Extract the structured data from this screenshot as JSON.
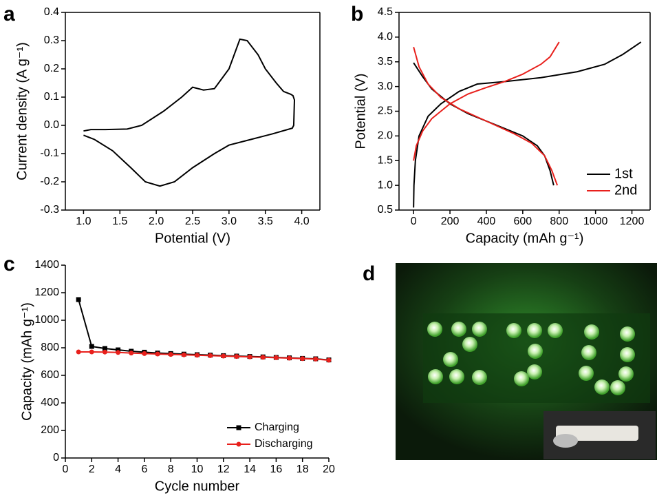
{
  "chart_data": [
    {
      "type": "line",
      "panel": "a",
      "xlabel": "Potential (V)",
      "ylabel": "Current density (A g⁻¹)",
      "frame": true,
      "xlim": [
        0.75,
        4.25
      ],
      "ylim": [
        -0.3,
        0.4
      ],
      "xticks": [
        {
          "value": 1,
          "label": "1.0"
        },
        1.5,
        {
          "value": 2,
          "label": "2.0"
        },
        2.5,
        {
          "value": 3,
          "label": "3.0"
        },
        3.5,
        {
          "value": 4,
          "label": "4.0"
        }
      ],
      "yticks": [
        -0.3,
        -0.2,
        -0.1,
        {
          "value": 0,
          "label": "0.0"
        },
        0.1,
        0.2,
        0.3,
        0.4
      ],
      "series": [
        {
          "color": "#000000",
          "x": [
            1.0,
            1.1,
            1.3,
            1.6,
            1.8,
            2.1,
            2.35,
            2.5,
            2.65,
            2.8,
            3.0,
            3.15,
            3.25,
            3.4,
            3.5,
            3.65,
            3.75,
            3.85,
            3.88,
            3.9,
            3.89,
            3.87,
            3.6,
            3.3,
            3.0,
            2.8,
            2.5,
            2.25,
            2.05,
            1.85,
            1.65,
            1.4,
            1.15,
            1.0
          ],
          "values": [
            -0.02,
            -0.015,
            -0.015,
            -0.013,
            0.0,
            0.05,
            0.1,
            0.135,
            0.125,
            0.13,
            0.2,
            0.305,
            0.3,
            0.25,
            0.2,
            0.15,
            0.12,
            0.11,
            0.105,
            0.09,
            0.0,
            -0.01,
            -0.03,
            -0.05,
            -0.07,
            -0.1,
            -0.15,
            -0.2,
            -0.215,
            -0.2,
            -0.15,
            -0.09,
            -0.05,
            -0.035
          ]
        }
      ]
    },
    {
      "type": "line",
      "panel": "b",
      "xlabel": "Capacity (mAh g⁻¹)",
      "ylabel": "Potential (V)",
      "frame": true,
      "legend": "lower right",
      "xlim": [
        -80,
        1300
      ],
      "ylim": [
        0.5,
        4.5
      ],
      "xticks": [
        0,
        200,
        400,
        600,
        800,
        1000,
        1200
      ],
      "yticks": [
        0.5,
        {
          "value": 1,
          "label": "1.0"
        },
        1.5,
        {
          "value": 2,
          "label": "2.0"
        },
        2.5,
        {
          "value": 3,
          "label": "3.0"
        },
        3.5,
        {
          "value": 4,
          "label": "4.0"
        },
        4.5
      ],
      "series": [
        {
          "name": "1st",
          "color": "#000000",
          "x": [
            0,
            2,
            10,
            30,
            80,
            150,
            250,
            350,
            500,
            700,
            900,
            1050,
            1150,
            1250,
            null,
            0,
            50,
            100,
            200,
            300,
            400,
            500,
            600,
            680,
            720,
            750,
            770
          ],
          "values": [
            0.55,
            1.0,
            1.5,
            2.0,
            2.4,
            2.65,
            2.9,
            3.05,
            3.1,
            3.18,
            3.3,
            3.45,
            3.65,
            3.9,
            null,
            3.48,
            3.2,
            2.95,
            2.65,
            2.45,
            2.3,
            2.15,
            2.0,
            1.8,
            1.6,
            1.3,
            1.0
          ]
        },
        {
          "name": "2nd",
          "color": "#e8201c",
          "x": [
            0,
            15,
            50,
            100,
            200,
            300,
            400,
            500,
            600,
            700,
            750,
            800,
            null,
            0,
            30,
            80,
            150,
            250,
            400,
            550,
            650,
            720,
            760,
            790
          ],
          "values": [
            1.5,
            1.8,
            2.1,
            2.35,
            2.65,
            2.85,
            2.98,
            3.1,
            3.25,
            3.45,
            3.6,
            3.9,
            null,
            3.8,
            3.4,
            3.05,
            2.78,
            2.55,
            2.3,
            2.05,
            1.85,
            1.6,
            1.3,
            1.0
          ]
        }
      ]
    },
    {
      "type": "line",
      "panel": "c",
      "xlabel": "Cycle number",
      "ylabel": "Capacity (mAh g⁻¹)",
      "frame": false,
      "legend": "lower right",
      "xlim": [
        0,
        20
      ],
      "ylim": [
        0,
        1400
      ],
      "xticks": [
        0,
        2,
        4,
        6,
        8,
        10,
        12,
        14,
        16,
        18,
        20
      ],
      "yticks": [
        0,
        200,
        400,
        600,
        800,
        1000,
        1200,
        1400
      ],
      "x": [
        1,
        2,
        3,
        4,
        5,
        6,
        7,
        8,
        9,
        10,
        11,
        12,
        13,
        14,
        15,
        16,
        17,
        18,
        19,
        20
      ],
      "series": [
        {
          "name": "Charging",
          "color": "#000000",
          "marker": "square",
          "values": [
            1150,
            810,
            795,
            785,
            775,
            768,
            762,
            758,
            754,
            750,
            747,
            743,
            740,
            737,
            734,
            730,
            727,
            723,
            720,
            712
          ]
        },
        {
          "name": "Discharging",
          "color": "#e8201c",
          "marker": "circle",
          "values": [
            770,
            770,
            769,
            766,
            762,
            758,
            755,
            752,
            749,
            746,
            743,
            740,
            737,
            734,
            731,
            728,
            725,
            721,
            718,
            710
          ]
        }
      ]
    }
  ],
  "photo": {
    "panel": "d"
  }
}
